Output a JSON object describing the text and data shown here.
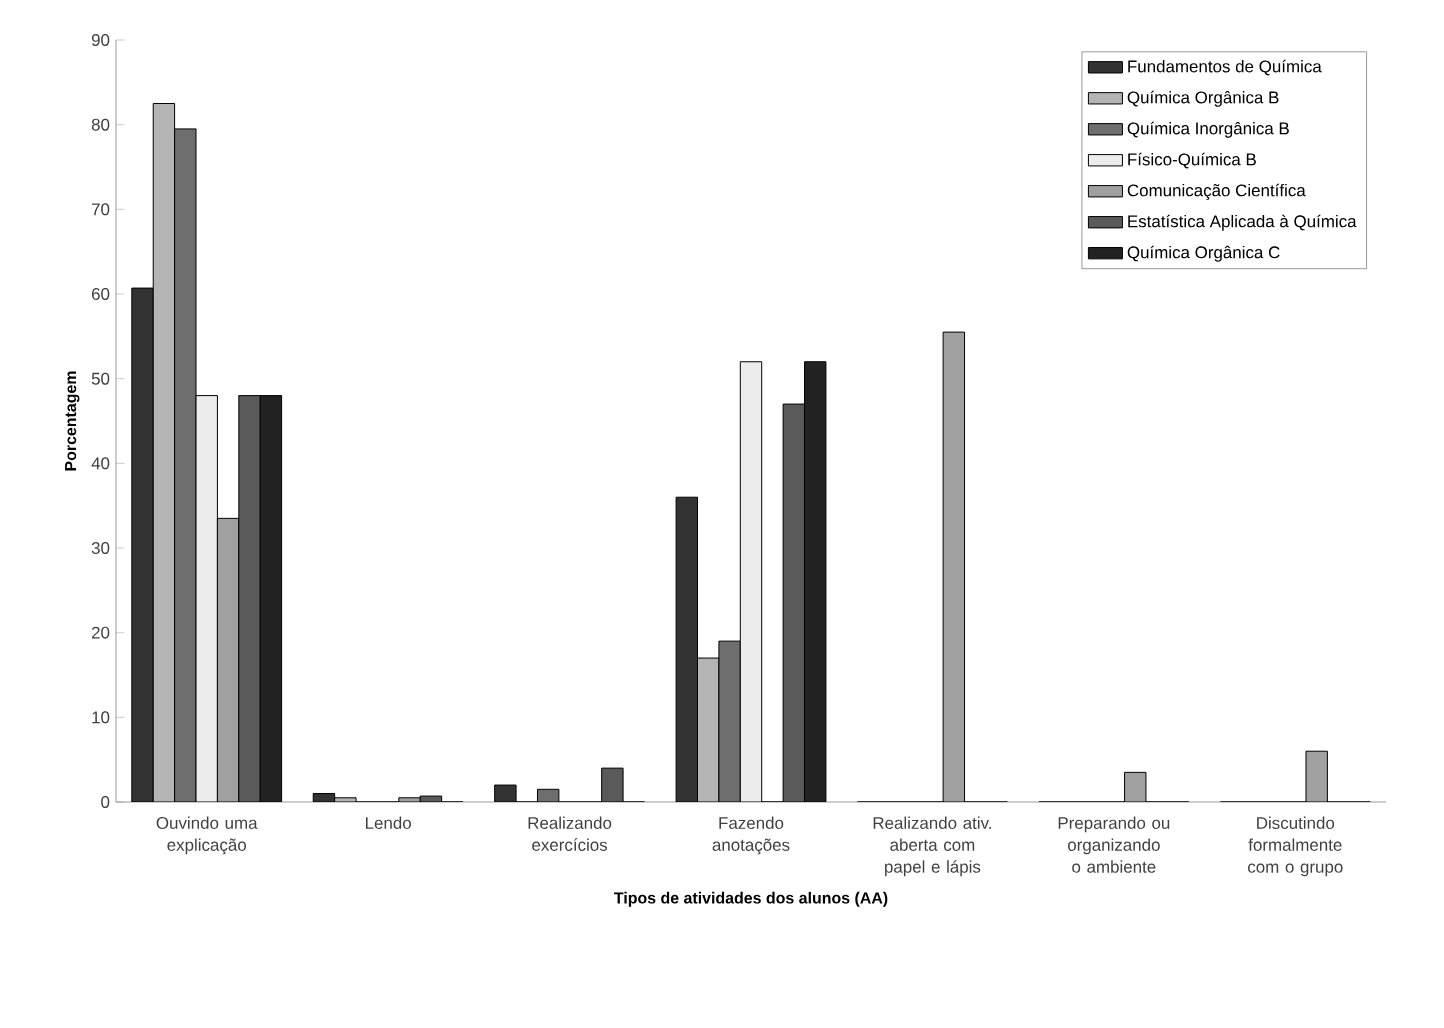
{
  "chart_data": {
    "type": "bar",
    "xlabel": "Tipos de atividades dos alunos (AA)",
    "ylabel": "Porcentagem",
    "categories": [
      "Ouvindo uma explicação",
      "Lendo",
      "Realizando exercícios",
      "Fazendo anotações",
      "Realizando ativ. aberta com papel e lápis",
      "Preparando ou organizando o ambiente",
      "Discutindo formalmente com o grupo"
    ],
    "series": [
      {
        "name": "Fundamentos de Química",
        "color": "#333333",
        "values": [
          60.7,
          1,
          2,
          36,
          0,
          0,
          0
        ]
      },
      {
        "name": "Química Orgânica B",
        "color": "#b4b4b4",
        "values": [
          82.5,
          0.5,
          0,
          17,
          0,
          0,
          0
        ]
      },
      {
        "name": "Química Inorgânica B",
        "color": "#6e6e6e",
        "values": [
          79.5,
          0,
          1.5,
          19,
          0,
          0,
          0
        ]
      },
      {
        "name": "Físico-Química B",
        "color": "#ececec",
        "values": [
          48,
          0,
          0,
          52,
          0,
          0,
          0
        ]
      },
      {
        "name": "Comunicação Científica",
        "color": "#a0a0a0",
        "values": [
          33.5,
          0.5,
          0,
          0,
          55.5,
          3.5,
          6
        ]
      },
      {
        "name": "Estatística Aplicada à Química",
        "color": "#5a5a5a",
        "values": [
          48,
          0.7,
          4,
          47,
          0,
          0,
          0
        ]
      },
      {
        "name": "Química Orgânica C",
        "color": "#222222",
        "values": [
          48,
          0,
          0,
          52,
          0,
          0,
          0
        ]
      }
    ],
    "ylim": [
      0,
      90
    ],
    "yticks": [
      0,
      10,
      20,
      30,
      40,
      50,
      60,
      70,
      80,
      90
    ],
    "grid": false,
    "legend": "top right"
  }
}
